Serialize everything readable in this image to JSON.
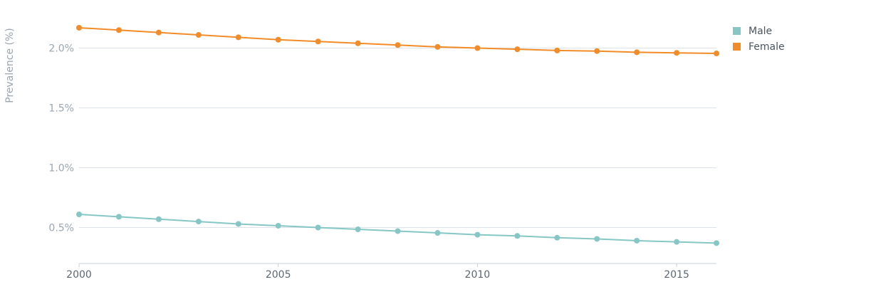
{
  "chart_data": {
    "type": "line",
    "ylabel": "Prevalence (%)",
    "xlabel": "",
    "xlim": [
      2000,
      2016
    ],
    "ylim": [
      0.2,
      2.25
    ],
    "x_ticks": [
      {
        "value": 2000,
        "label": "2000"
      },
      {
        "value": 2005,
        "label": "2005"
      },
      {
        "value": 2010,
        "label": "2010"
      },
      {
        "value": 2015,
        "label": "2015"
      }
    ],
    "y_ticks": [
      {
        "value": 0.5,
        "label": "0.5%"
      },
      {
        "value": 1.0,
        "label": "1.0%"
      },
      {
        "value": 1.5,
        "label": "1.5%"
      },
      {
        "value": 2.0,
        "label": "2.0%"
      }
    ],
    "grid": true,
    "legend_position": "top-right",
    "x": [
      2000,
      2001,
      2002,
      2003,
      2004,
      2005,
      2006,
      2007,
      2008,
      2009,
      2010,
      2011,
      2012,
      2013,
      2014,
      2015,
      2016
    ],
    "series": [
      {
        "name": "Male",
        "color": "#86c7c6",
        "values": [
          0.61,
          0.59,
          0.57,
          0.55,
          0.53,
          0.515,
          0.5,
          0.485,
          0.47,
          0.455,
          0.44,
          0.43,
          0.415,
          0.405,
          0.39,
          0.38,
          0.37
        ]
      },
      {
        "name": "Female",
        "color": "#f28c28",
        "values": [
          2.17,
          2.15,
          2.13,
          2.11,
          2.09,
          2.07,
          2.055,
          2.04,
          2.025,
          2.01,
          2.0,
          1.99,
          1.98,
          1.975,
          1.965,
          1.96,
          1.955
        ]
      }
    ]
  }
}
